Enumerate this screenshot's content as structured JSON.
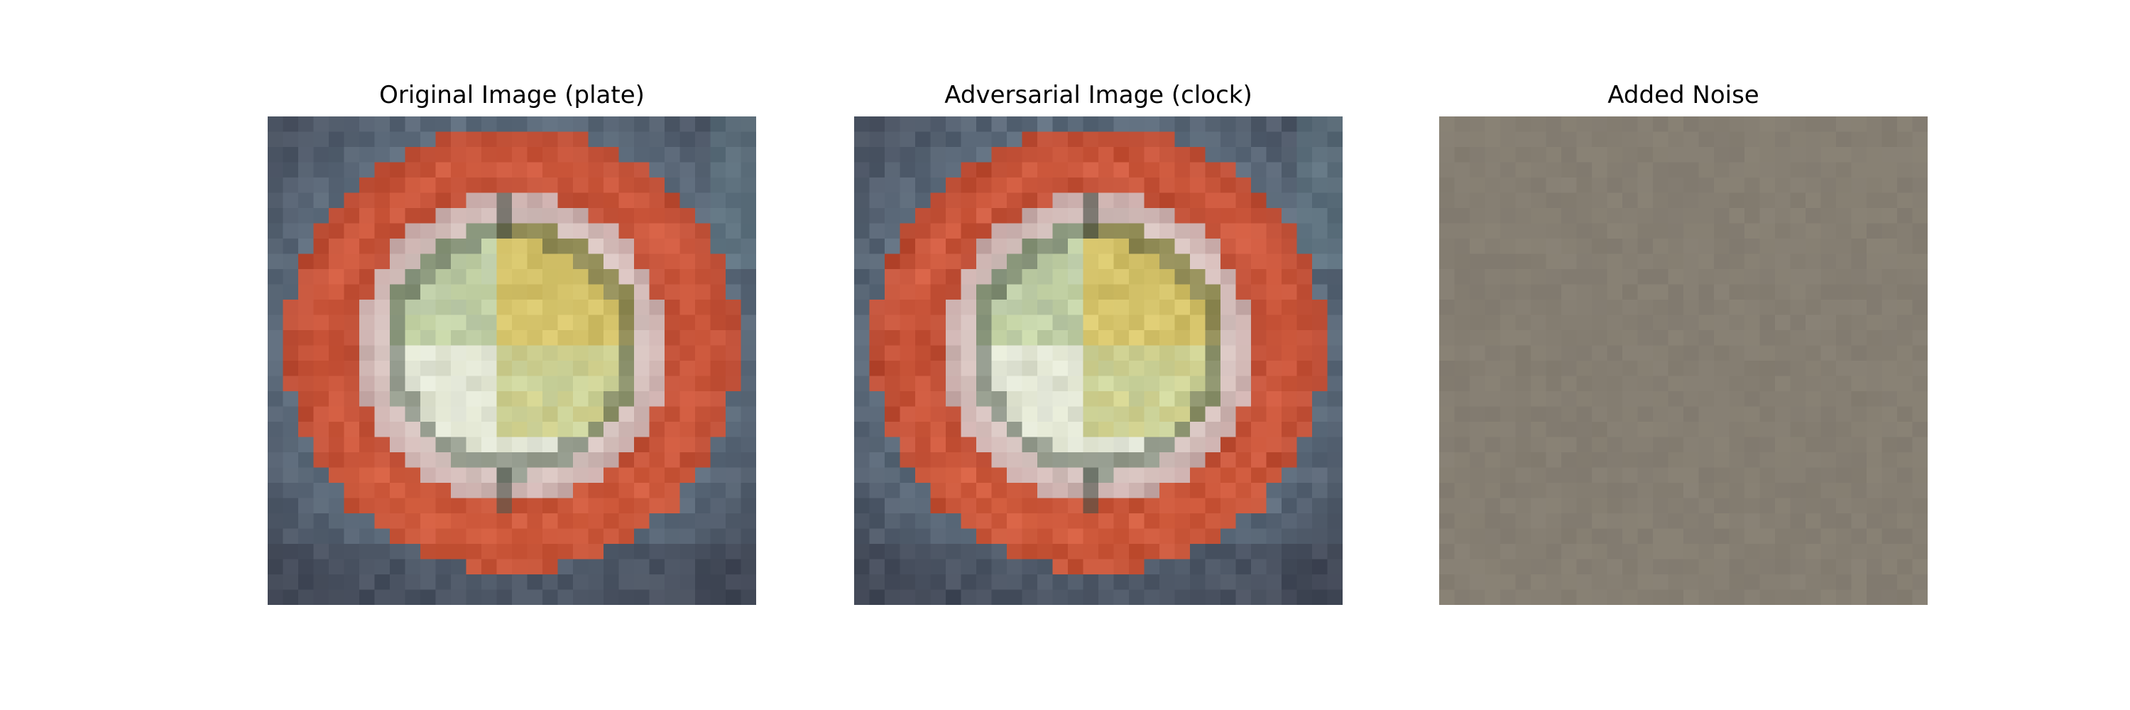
{
  "figure": {
    "panels": [
      {
        "title": "Original Image (plate)",
        "content": "plate-photo"
      },
      {
        "title": "Adversarial Image (clock)",
        "content": "plate-photo"
      },
      {
        "title": "Added Noise",
        "content": "noise-field"
      }
    ],
    "colors": {
      "plate_rim": "#cf5a3e",
      "plate_rim_dark": "#b0452f",
      "plate_inner_ring": "#d8c6c2",
      "plate_center": "#dfe3cf",
      "food_yellow": "#d9c870",
      "food_green": "#c7d6a8",
      "background_blue_gray": "#5d6c7c",
      "noise_gray": "#857e72"
    }
  }
}
